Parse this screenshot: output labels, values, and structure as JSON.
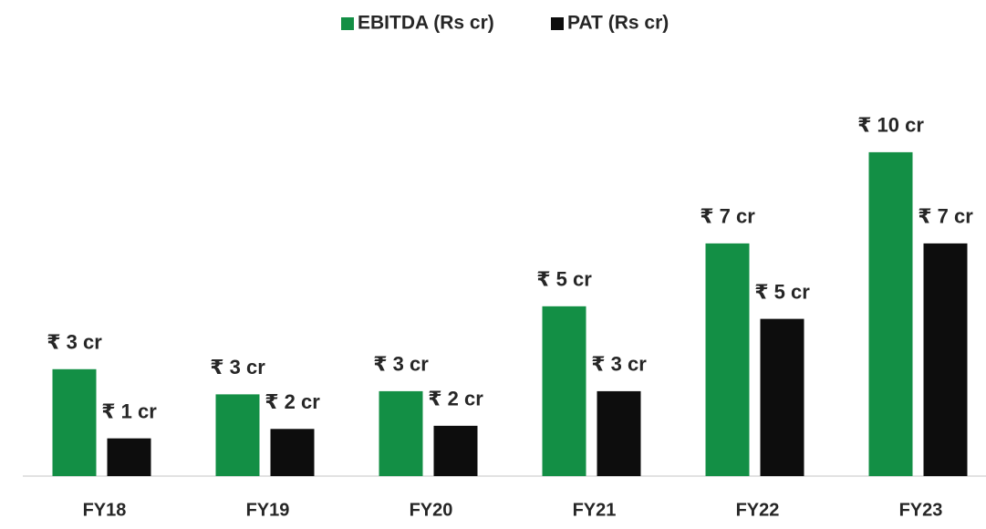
{
  "chart_data": {
    "type": "bar",
    "categories": [
      "FY18",
      "FY19",
      "FY20",
      "FY21",
      "FY22",
      "FY23"
    ],
    "series": [
      {
        "name": "EBITDA (Rs cr)",
        "color": "#138f45",
        "values": [
          3.4,
          2.6,
          2.7,
          5.4,
          7.4,
          10.3
        ],
        "value_labels": [
          "₹ 3 cr",
          "₹ 3 cr",
          "₹ 3 cr",
          "₹ 5 cr",
          "₹ 7 cr",
          "₹ 10 cr"
        ]
      },
      {
        "name": "PAT (Rs cr)",
        "color": "#0d0d0d",
        "values": [
          1.2,
          1.5,
          1.6,
          2.7,
          5.0,
          7.4
        ],
        "value_labels": [
          "₹ 1 cr",
          "₹ 2 cr",
          "₹ 2 cr",
          "₹ 3 cr",
          "₹ 5 cr",
          "₹ 7 cr"
        ]
      }
    ],
    "ylim": [
      0,
      10.5
    ],
    "legend": "top"
  }
}
